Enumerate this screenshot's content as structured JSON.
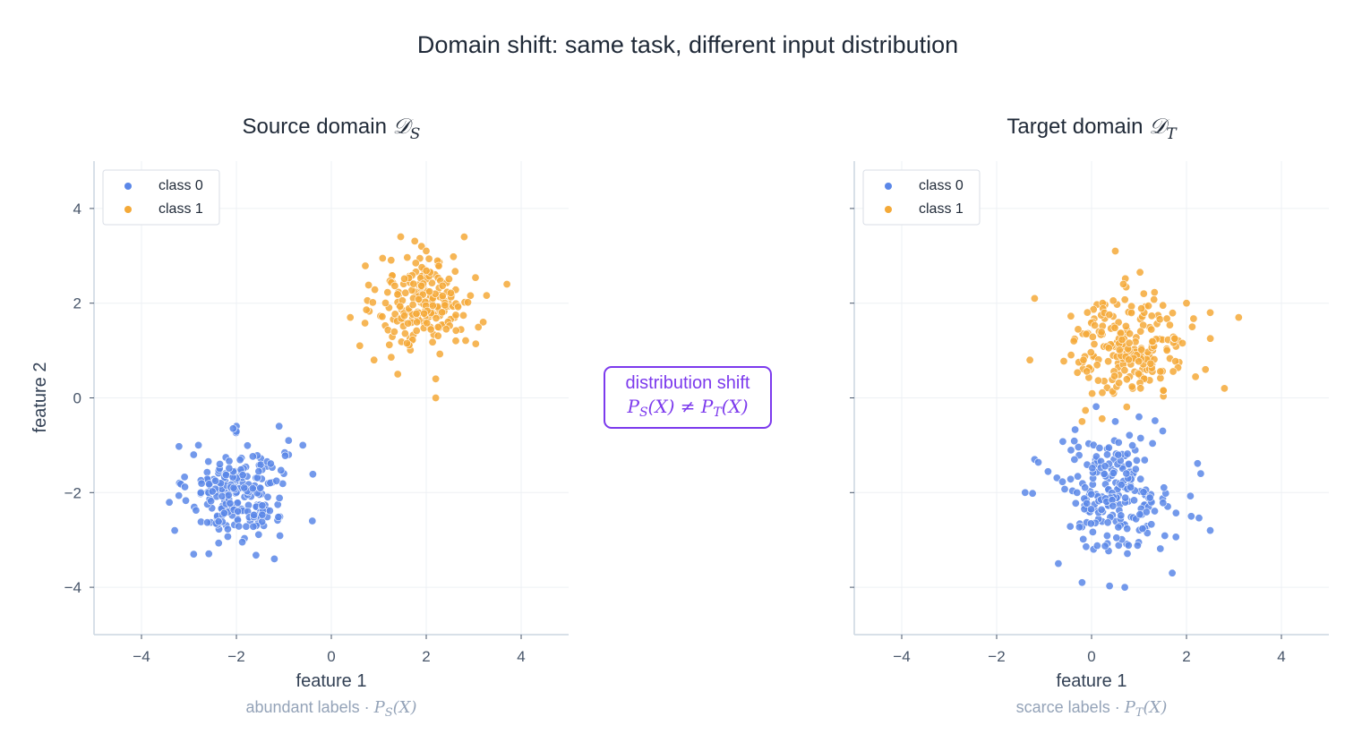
{
  "suptitle": "Domain shift: same task, different input distribution",
  "colors": {
    "class0": "#5b87e8",
    "class1": "#f4a938",
    "annotation": "#7c3aed",
    "axis": "#cbd5e1",
    "grid": "#eef0f4"
  },
  "annotation": {
    "line1": "distribution shift",
    "line2_P": "P",
    "line2_S": "S",
    "line2_mid": "(X) ≠ ",
    "line2_P2": "P",
    "line2_T": "T",
    "line2_end": "(X)"
  },
  "chart_data": [
    {
      "type": "scatter",
      "title": "Source domain",
      "title_math": "𝒟",
      "title_sub": "S",
      "xlabel": "feature 1",
      "ylabel": "feature 2",
      "caption_text": "abundant labels  ·  ",
      "caption_math": "P",
      "caption_sub": "S",
      "caption_end": "(X)",
      "xlim": [
        -5,
        5
      ],
      "ylim": [
        -5,
        5
      ],
      "xticks": [
        -4,
        -2,
        0,
        2,
        4
      ],
      "yticks": [
        -4,
        -2,
        0,
        2,
        4
      ],
      "xtick_labels": [
        "−4",
        "−2",
        "0",
        "2",
        "4"
      ],
      "ytick_labels": [
        "−4",
        "−2",
        "0",
        "2",
        "4"
      ],
      "grid": true,
      "legend_position": "top-left",
      "series": [
        {
          "name": "class 0",
          "center": [
            -2.0,
            -2.0
          ],
          "spread": [
            0.5,
            0.5
          ],
          "points": [
            [
              -1.1,
              -0.6
            ],
            [
              -2.0,
              -0.6
            ],
            [
              -0.9,
              -0.9
            ],
            [
              -0.6,
              -1.0
            ],
            [
              -0.9,
              -1.2
            ],
            [
              -2.8,
              -1.0
            ],
            [
              -2.9,
              -1.2
            ],
            [
              -0.4,
              -2.6
            ],
            [
              -1.2,
              -3.4
            ],
            [
              -2.9,
              -3.3
            ],
            [
              -3.2,
              -1.8
            ],
            [
              -1.0,
              -1.6
            ],
            [
              -3.3,
              -2.8
            ]
          ]
        },
        {
          "name": "class 1",
          "center": [
            2.0,
            2.0
          ],
          "spread": [
            0.5,
            0.5
          ],
          "points": [
            [
              3.7,
              2.4
            ],
            [
              2.8,
              3.4
            ],
            [
              2.2,
              0.0
            ],
            [
              2.2,
              0.4
            ],
            [
              1.4,
              0.5
            ],
            [
              0.4,
              1.7
            ],
            [
              0.6,
              1.1
            ],
            [
              1.9,
              3.2
            ],
            [
              0.9,
              0.8
            ],
            [
              3.2,
              1.6
            ]
          ]
        }
      ]
    },
    {
      "type": "scatter",
      "title": "Target domain",
      "title_math": "𝒟",
      "title_sub": "T",
      "xlabel": "feature 1",
      "ylabel": "",
      "caption_text": "scarce labels  ·  ",
      "caption_math": "P",
      "caption_sub": "T",
      "caption_end": "(X)",
      "xlim": [
        -5,
        5
      ],
      "ylim": [
        -5,
        5
      ],
      "xticks": [
        -4,
        -2,
        0,
        2,
        4
      ],
      "yticks": [
        -4,
        -2,
        0,
        2,
        4
      ],
      "xtick_labels": [
        "−4",
        "−2",
        "0",
        "2",
        "4"
      ],
      "ytick_labels": [
        "",
        "",
        "",
        "",
        ""
      ],
      "grid": true,
      "legend_position": "top-left",
      "series": [
        {
          "name": "class 0",
          "center": [
            0.5,
            -2.0
          ],
          "spread": [
            0.6,
            0.6
          ],
          "points": [
            [
              -1.4,
              -2.0
            ],
            [
              -1.2,
              -1.3
            ],
            [
              2.5,
              -2.8
            ],
            [
              2.1,
              -2.5
            ],
            [
              1.7,
              -3.7
            ],
            [
              -0.2,
              -3.9
            ],
            [
              0.7,
              -4.0
            ],
            [
              -0.7,
              -3.5
            ],
            [
              2.3,
              -1.6
            ],
            [
              1.5,
              -0.7
            ],
            [
              0.5,
              -0.5
            ],
            [
              1.0,
              -0.4
            ]
          ]
        },
        {
          "name": "class 1",
          "center": [
            0.8,
            1.1
          ],
          "spread": [
            0.6,
            0.55
          ],
          "points": [
            [
              0.5,
              3.1
            ],
            [
              3.1,
              1.7
            ],
            [
              2.8,
              0.2
            ],
            [
              -1.2,
              2.1
            ],
            [
              -1.3,
              0.8
            ],
            [
              2.4,
              0.6
            ],
            [
              2.5,
              1.8
            ],
            [
              -0.2,
              -0.5
            ],
            [
              1.1,
              2.2
            ],
            [
              2.0,
              2.0
            ]
          ]
        }
      ]
    }
  ]
}
